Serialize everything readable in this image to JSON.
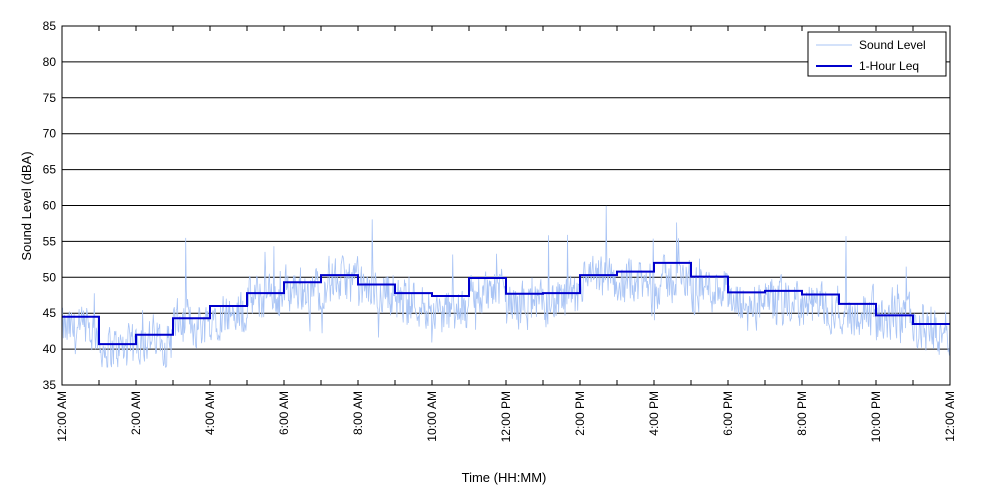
{
  "chart_data": {
    "type": "line",
    "xlabel": "Time (HH:MM)",
    "ylabel": "Sound Level (dBA)",
    "ylim": [
      35,
      85
    ],
    "xlim_hours": [
      0,
      24
    ],
    "yticks": [
      35,
      40,
      45,
      50,
      55,
      60,
      65,
      70,
      75,
      80,
      85
    ],
    "xticks": [
      {
        "hour": 0,
        "label": "12:00 AM"
      },
      {
        "hour": 2,
        "label": "2:00 AM"
      },
      {
        "hour": 4,
        "label": "4:00 AM"
      },
      {
        "hour": 6,
        "label": "6:00 AM"
      },
      {
        "hour": 8,
        "label": "8:00 AM"
      },
      {
        "hour": 10,
        "label": "10:00 AM"
      },
      {
        "hour": 12,
        "label": "12:00 PM"
      },
      {
        "hour": 14,
        "label": "2:00 PM"
      },
      {
        "hour": 16,
        "label": "4:00 PM"
      },
      {
        "hour": 18,
        "label": "6:00 PM"
      },
      {
        "hour": 20,
        "label": "8:00 PM"
      },
      {
        "hour": 22,
        "label": "10:00 PM"
      },
      {
        "hour": 24,
        "label": "12:00 AM"
      }
    ],
    "grid": "horizontal",
    "legend_position": "top-right",
    "series": [
      {
        "name": "Sound Level",
        "color": "#a9c4f5",
        "style": "thin-noisy",
        "approx_hourly_mean": [
          42.5,
          40.0,
          41.5,
          43.5,
          45.0,
          47.0,
          48.5,
          49.5,
          48.0,
          46.5,
          45.0,
          48.0,
          46.0,
          46.5,
          49.5,
          49.0,
          49.5,
          48.5,
          46.0,
          46.5,
          46.0,
          45.0,
          44.0,
          43.0
        ]
      },
      {
        "name": "1-Hour Leq",
        "color": "#0000cc",
        "style": "step",
        "hours": [
          0,
          1,
          2,
          3,
          4,
          5,
          6,
          7,
          8,
          9,
          10,
          11,
          12,
          13,
          14,
          15,
          16,
          17,
          18,
          19,
          20,
          21,
          22,
          23
        ],
        "values": [
          44.5,
          40.7,
          42.0,
          44.3,
          46.0,
          47.8,
          49.3,
          50.3,
          49.0,
          47.8,
          47.4,
          49.9,
          47.7,
          47.8,
          50.3,
          50.8,
          52.0,
          50.1,
          47.9,
          48.1,
          47.6,
          46.3,
          44.7,
          43.5
        ]
      }
    ]
  }
}
